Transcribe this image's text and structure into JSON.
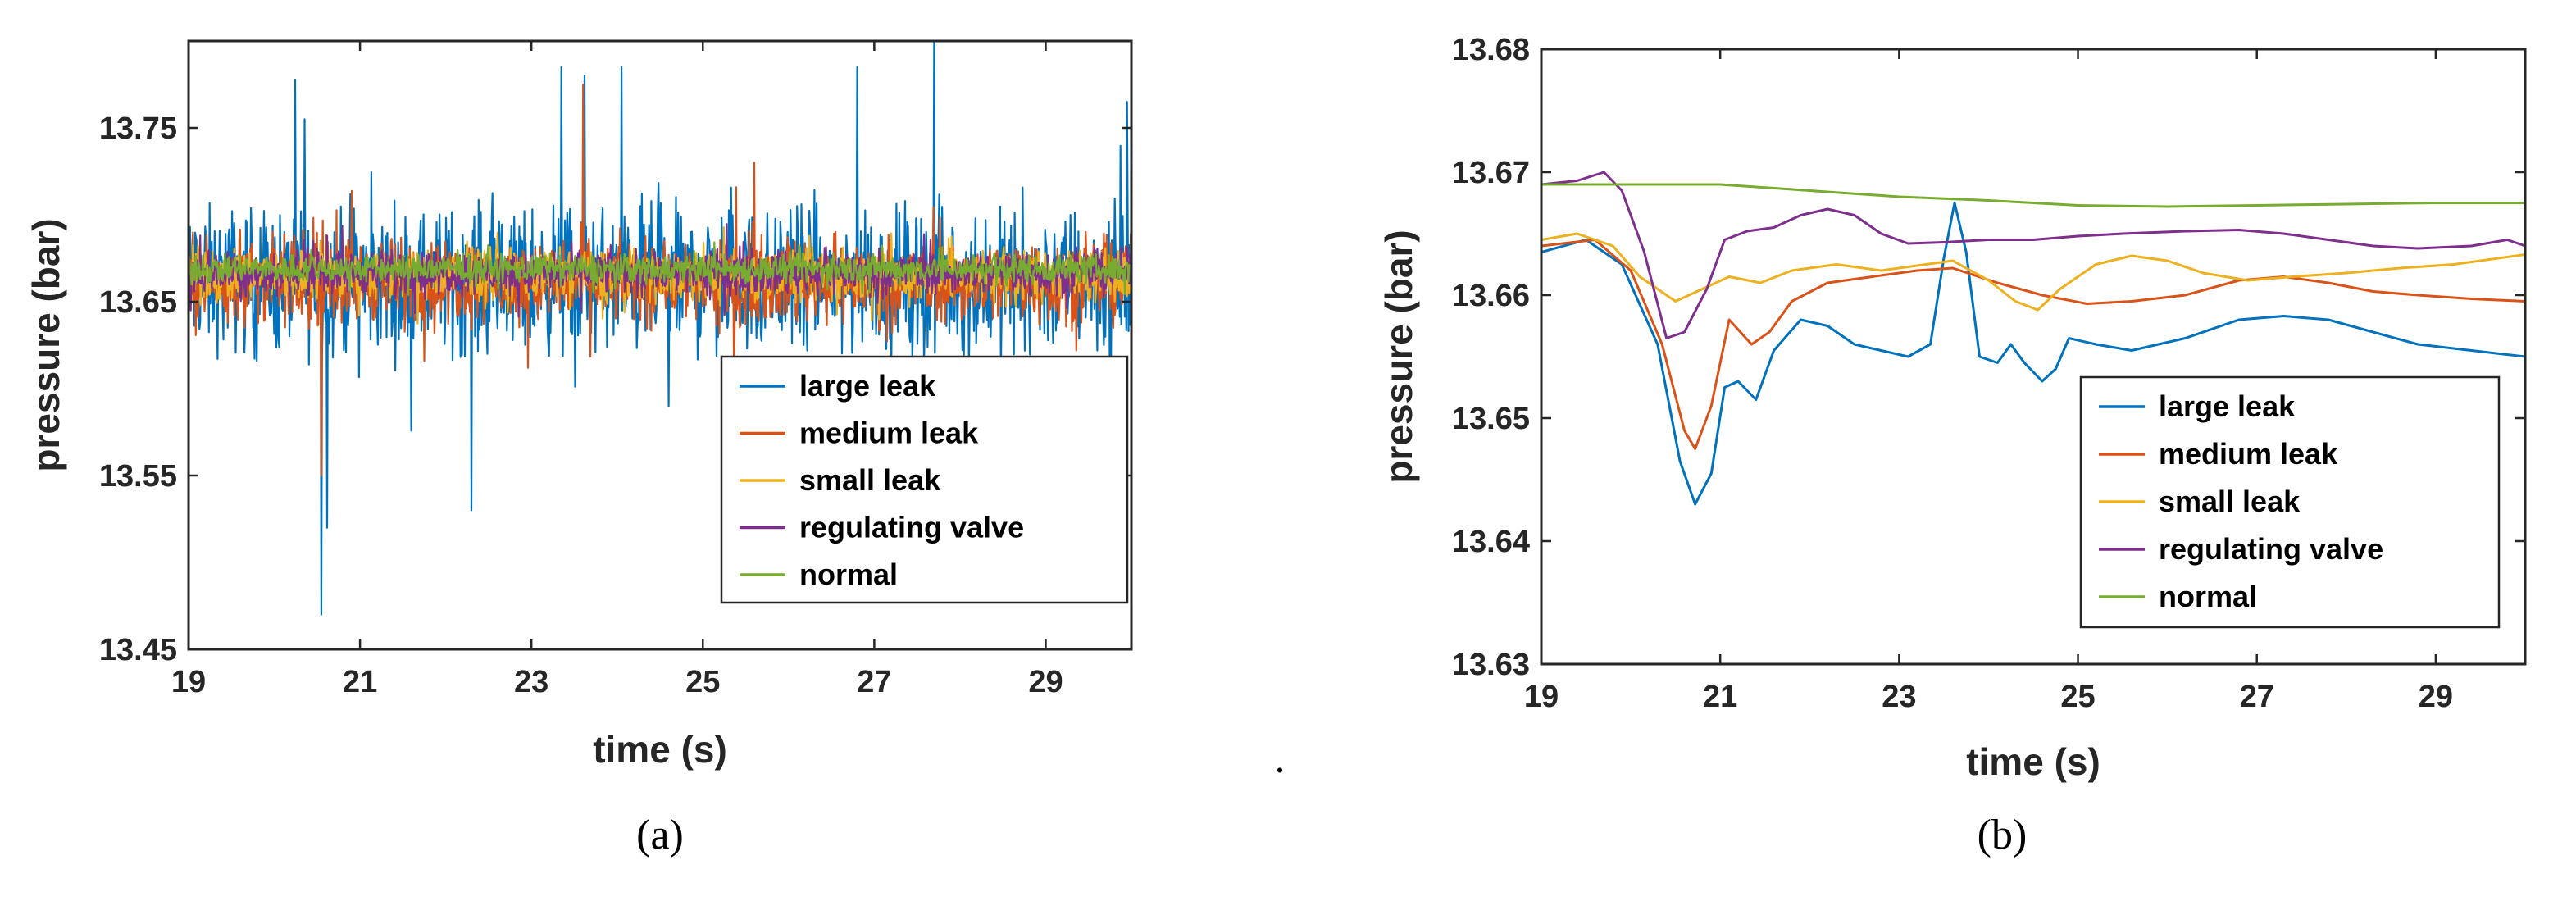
{
  "series_colors": {
    "large leak": "#0072BD",
    "medium leak": "#D95319",
    "small leak": "#EDB120",
    "regulating valve": "#7E2F8E",
    "normal": "#77AC30"
  },
  "panels": [
    {
      "label": "(a)"
    },
    {
      "label": "(b)"
    }
  ],
  "separator": ".",
  "chart_data": [
    {
      "type": "line",
      "panel": "(a)",
      "xlabel": "time (s)",
      "ylabel": "pressure (bar)",
      "xlim": [
        19,
        30
      ],
      "ylim": [
        13.45,
        13.8
      ],
      "xticks": [
        "19",
        "21",
        "23",
        "25",
        "27",
        "29"
      ],
      "yticks": [
        "13.45",
        "13.55",
        "13.65",
        "13.75"
      ],
      "grid": false,
      "legend_position": "bottom-right",
      "legend": [
        "large leak",
        "medium leak",
        "small leak",
        "regulating valve",
        "normal"
      ],
      "noisy_signals": [
        {
          "name": "large leak",
          "mean": 13.662,
          "spread": 0.06,
          "spikes": [
            [
              20.35,
              13.755
            ],
            [
              20.55,
              13.47
            ],
            [
              20.62,
              13.52
            ],
            [
              22.3,
              13.53
            ],
            [
              23.35,
              13.785
            ],
            [
              23.62,
              13.78
            ],
            [
              24.05,
              13.785
            ],
            [
              24.6,
              13.59
            ],
            [
              26.8,
              13.785
            ],
            [
              27.7,
              13.8
            ],
            [
              29.95,
              13.765
            ]
          ]
        },
        {
          "name": "medium leak",
          "mean": 13.662,
          "spread": 0.035,
          "spikes": [
            [
              20.55,
              13.55
            ],
            [
              23.6,
              13.775
            ],
            [
              25.6,
              13.73
            ]
          ]
        },
        {
          "name": "small leak",
          "mean": 13.665,
          "spread": 0.022,
          "spikes": []
        },
        {
          "name": "regulating valve",
          "mean": 13.667,
          "spread": 0.018,
          "spikes": []
        },
        {
          "name": "normal",
          "mean": 13.669,
          "spread": 0.012,
          "spikes": []
        }
      ]
    },
    {
      "type": "line",
      "panel": "(b)",
      "xlabel": "time (s)",
      "ylabel": "pressure (bar)",
      "xlim": [
        19,
        30
      ],
      "ylim": [
        13.63,
        13.68
      ],
      "xticks": [
        "19",
        "21",
        "23",
        "25",
        "27",
        "29"
      ],
      "yticks": [
        "13.63",
        "13.64",
        "13.65",
        "13.66",
        "13.67",
        "13.68"
      ],
      "grid": false,
      "legend_position": "bottom-right",
      "legend": [
        "large leak",
        "medium leak",
        "small leak",
        "regulating valve",
        "normal"
      ],
      "series": [
        {
          "name": "large leak",
          "points": [
            [
              19,
              13.6635
            ],
            [
              19.5,
              13.6645
            ],
            [
              19.9,
              13.6625
            ],
            [
              20.3,
              13.656
            ],
            [
              20.55,
              13.6465
            ],
            [
              20.72,
              13.643
            ],
            [
              20.9,
              13.6455
            ],
            [
              21.05,
              13.6525
            ],
            [
              21.2,
              13.653
            ],
            [
              21.4,
              13.6515
            ],
            [
              21.6,
              13.6555
            ],
            [
              21.9,
              13.658
            ],
            [
              22.2,
              13.6575
            ],
            [
              22.5,
              13.656
            ],
            [
              22.8,
              13.6555
            ],
            [
              23.1,
              13.655
            ],
            [
              23.35,
              13.656
            ],
            [
              23.5,
              13.663
            ],
            [
              23.62,
              13.6675
            ],
            [
              23.75,
              13.6635
            ],
            [
              23.9,
              13.655
            ],
            [
              24.1,
              13.6545
            ],
            [
              24.25,
              13.656
            ],
            [
              24.4,
              13.6545
            ],
            [
              24.6,
              13.653
            ],
            [
              24.75,
              13.654
            ],
            [
              24.9,
              13.6565
            ],
            [
              25.2,
              13.656
            ],
            [
              25.6,
              13.6555
            ],
            [
              26.2,
              13.6565
            ],
            [
              26.8,
              13.658
            ],
            [
              27.3,
              13.6583
            ],
            [
              27.8,
              13.658
            ],
            [
              28.3,
              13.657
            ],
            [
              28.8,
              13.656
            ],
            [
              29.4,
              13.6555
            ],
            [
              30,
              13.655
            ]
          ]
        },
        {
          "name": "medium leak",
          "points": [
            [
              19,
              13.664
            ],
            [
              19.6,
              13.6645
            ],
            [
              20.0,
              13.662
            ],
            [
              20.35,
              13.656
            ],
            [
              20.6,
              13.649
            ],
            [
              20.72,
              13.6475
            ],
            [
              20.9,
              13.651
            ],
            [
              21.1,
              13.658
            ],
            [
              21.35,
              13.656
            ],
            [
              21.55,
              13.657
            ],
            [
              21.8,
              13.6595
            ],
            [
              22.2,
              13.661
            ],
            [
              22.7,
              13.6615
            ],
            [
              23.2,
              13.662
            ],
            [
              23.6,
              13.6622
            ],
            [
              24.1,
              13.661
            ],
            [
              24.6,
              13.66
            ],
            [
              25.1,
              13.6593
            ],
            [
              25.6,
              13.6595
            ],
            [
              26.2,
              13.66
            ],
            [
              26.8,
              13.6612
            ],
            [
              27.3,
              13.6615
            ],
            [
              27.8,
              13.661
            ],
            [
              28.3,
              13.6603
            ],
            [
              28.8,
              13.66
            ],
            [
              29.4,
              13.6597
            ],
            [
              30,
              13.6595
            ]
          ]
        },
        {
          "name": "small leak",
          "points": [
            [
              19,
              13.6645
            ],
            [
              19.4,
              13.665
            ],
            [
              19.8,
              13.664
            ],
            [
              20.1,
              13.6615
            ],
            [
              20.5,
              13.6595
            ],
            [
              20.8,
              13.6605
            ],
            [
              21.1,
              13.6615
            ],
            [
              21.45,
              13.661
            ],
            [
              21.8,
              13.662
            ],
            [
              22.3,
              13.6625
            ],
            [
              22.8,
              13.662
            ],
            [
              23.3,
              13.6625
            ],
            [
              23.6,
              13.6628
            ],
            [
              24.0,
              13.6612
            ],
            [
              24.3,
              13.6595
            ],
            [
              24.55,
              13.6588
            ],
            [
              24.8,
              13.6605
            ],
            [
              25.2,
              13.6625
            ],
            [
              25.6,
              13.6632
            ],
            [
              26.0,
              13.6628
            ],
            [
              26.4,
              13.6618
            ],
            [
              26.9,
              13.6612
            ],
            [
              27.4,
              13.6615
            ],
            [
              28.0,
              13.6618
            ],
            [
              28.6,
              13.6622
            ],
            [
              29.2,
              13.6625
            ],
            [
              30,
              13.6633
            ]
          ]
        },
        {
          "name": "regulating valve",
          "points": [
            [
              19,
              13.669
            ],
            [
              19.4,
              13.6693
            ],
            [
              19.7,
              13.67
            ],
            [
              19.9,
              13.6685
            ],
            [
              20.15,
              13.6635
            ],
            [
              20.4,
              13.6565
            ],
            [
              20.6,
              13.657
            ],
            [
              20.85,
              13.6605
            ],
            [
              21.05,
              13.6645
            ],
            [
              21.3,
              13.6652
            ],
            [
              21.6,
              13.6655
            ],
            [
              21.9,
              13.6665
            ],
            [
              22.2,
              13.667
            ],
            [
              22.5,
              13.6665
            ],
            [
              22.8,
              13.665
            ],
            [
              23.1,
              13.6642
            ],
            [
              23.5,
              13.6643
            ],
            [
              24.0,
              13.6645
            ],
            [
              24.5,
              13.6645
            ],
            [
              25.0,
              13.6648
            ],
            [
              25.5,
              13.665
            ],
            [
              26.2,
              13.6652
            ],
            [
              26.8,
              13.6653
            ],
            [
              27.3,
              13.665
            ],
            [
              27.8,
              13.6645
            ],
            [
              28.3,
              13.664
            ],
            [
              28.8,
              13.6638
            ],
            [
              29.4,
              13.664
            ],
            [
              29.8,
              13.6645
            ],
            [
              30,
              13.664
            ]
          ]
        },
        {
          "name": "normal",
          "points": [
            [
              19,
              13.669
            ],
            [
              20,
              13.669
            ],
            [
              21,
              13.669
            ],
            [
              22,
              13.6685
            ],
            [
              23,
              13.668
            ],
            [
              24,
              13.6677
            ],
            [
              25,
              13.6673
            ],
            [
              26,
              13.6672
            ],
            [
              27,
              13.6673
            ],
            [
              28,
              13.6674
            ],
            [
              29,
              13.6675
            ],
            [
              30,
              13.6675
            ]
          ]
        }
      ]
    }
  ]
}
